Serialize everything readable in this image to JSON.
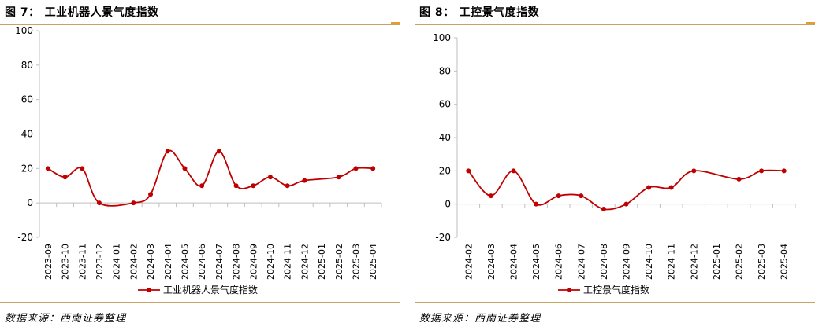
{
  "panels": [
    {
      "figure_label": "图 7：",
      "title": "工业机器人景气度指数",
      "source": "数据来源：西南证券整理",
      "colors": {
        "line": "#c00000",
        "axis": "#bfbfbf",
        "rule": "#c8a464"
      }
    },
    {
      "figure_label": "图 8：",
      "title": "工控景气度指数",
      "source": "数据来源：西南证券整理",
      "colors": {
        "line": "#c00000",
        "axis": "#bfbfbf",
        "rule": "#c8a464"
      }
    }
  ],
  "chart_data": [
    {
      "type": "line",
      "title": "工业机器人景气度指数",
      "categories": [
        "2023-09",
        "2023-10",
        "2023-11",
        "2023-12",
        "2024-01",
        "2024-02",
        "2024-03",
        "2024-04",
        "2024-05",
        "2024-06",
        "2024-07",
        "2024-08",
        "2024-09",
        "2024-10",
        "2024-11",
        "2024-12",
        "2025-01",
        "2025-02",
        "2025-03",
        "2025-04"
      ],
      "series": [
        {
          "name": "工业机器人景气度指数",
          "values": [
            20,
            15,
            20,
            0,
            null,
            0,
            5,
            30,
            20,
            10,
            30,
            10,
            10,
            15,
            10,
            13,
            null,
            15,
            20,
            20
          ]
        }
      ],
      "ylim": [
        -20,
        100
      ],
      "yticks": [
        "-20",
        "0",
        "20",
        "40",
        "60",
        "80",
        "100"
      ],
      "legend": "bottom",
      "xlabel": "",
      "ylabel": ""
    },
    {
      "type": "line",
      "title": "工控景气度指数",
      "categories": [
        "2024-02",
        "2024-03",
        "2024-04",
        "2024-05",
        "2024-06",
        "2024-07",
        "2024-08",
        "2024-09",
        "2024-10",
        "2024-11",
        "2024-12",
        "2025-01",
        "2025-02",
        "2025-03",
        "2025-04"
      ],
      "series": [
        {
          "name": "工控景气度指数",
          "values": [
            20,
            5,
            20,
            0,
            5,
            5,
            -3,
            0,
            10,
            10,
            20,
            null,
            15,
            20,
            20
          ]
        }
      ],
      "ylim": [
        -20,
        100
      ],
      "yticks": [
        "-20",
        "0",
        "20",
        "40",
        "60",
        "80",
        "100"
      ],
      "legend": "bottom",
      "xlabel": "",
      "ylabel": ""
    }
  ]
}
